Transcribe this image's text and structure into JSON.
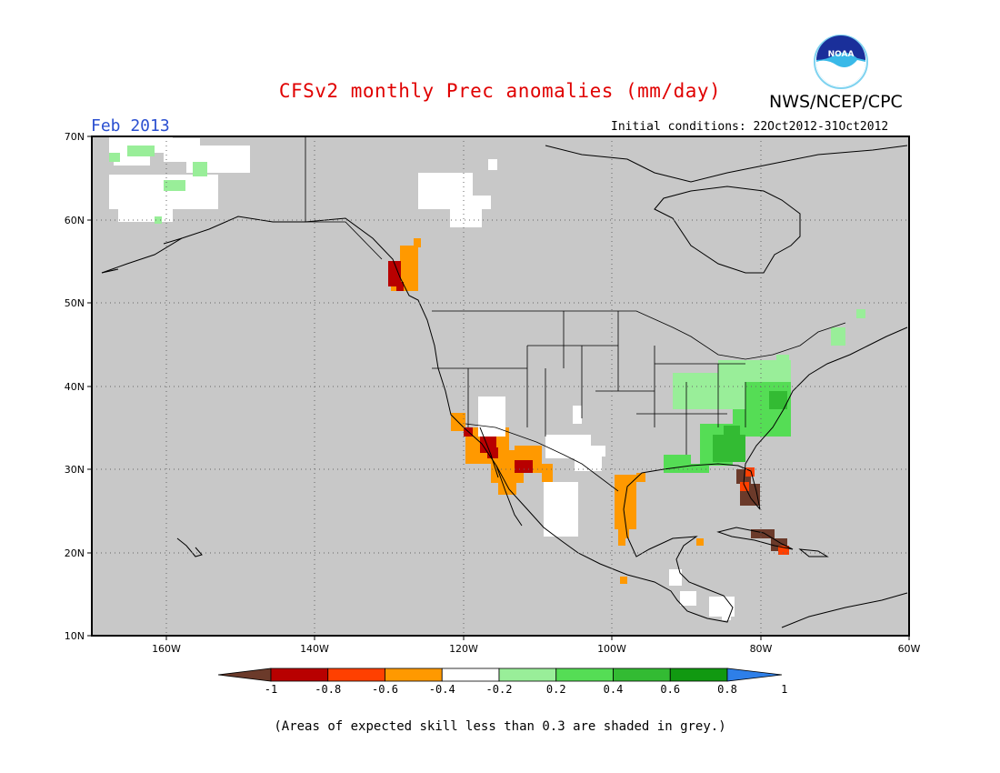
{
  "title": "CFSv2 monthly Prec anomalies (mm/day)",
  "agency": "NWS/NCEP/CPC",
  "logo_text": "NOAA",
  "month_label": "Feb 2013",
  "initial_conditions": "Initial conditions: 22Oct2012-31Oct2012",
  "footnote": "(Areas of expected skill less than 0.3 are shaded in grey.)",
  "map": {
    "lon_range": [
      -172,
      -60
    ],
    "lat_range": [
      10,
      70
    ],
    "background_color": "#c8c8c8",
    "grid": "dotted",
    "lat_ticks": [
      "70N",
      "60N",
      "50N",
      "40N",
      "30N",
      "20N",
      "10N"
    ],
    "lon_ticks": [
      "160W",
      "140W",
      "120W",
      "100W",
      "80W",
      "60W"
    ]
  },
  "colorbar": {
    "labels": [
      "-1",
      "-0.8",
      "-0.6",
      "-0.4",
      "-0.2",
      "0.2",
      "0.4",
      "0.6",
      "0.8",
      "1"
    ],
    "colors": [
      "#6b3a2a",
      "#b80000",
      "#ff4000",
      "#ff9900",
      "#ffffff",
      "#99ee99",
      "#55dd55",
      "#33bb33",
      "#119911",
      "#2e7fe8"
    ]
  },
  "anomaly_regions": [
    {
      "name": "alaska-north",
      "color": "#ffffff"
    },
    {
      "name": "alaska-north-green",
      "color": "#99ee99"
    },
    {
      "name": "yukon-white",
      "color": "#ffffff"
    },
    {
      "name": "bc-coast",
      "color": "#ff9900"
    },
    {
      "name": "bc-coast-dry",
      "color": "#b80000"
    },
    {
      "name": "california-baja",
      "color": "#ff9900"
    },
    {
      "name": "southern-california-dry",
      "color": "#b80000"
    },
    {
      "name": "southwest-white",
      "color": "#ffffff"
    },
    {
      "name": "texas-coast",
      "color": "#ff9900"
    },
    {
      "name": "ohio-valley",
      "color": "#99ee99"
    },
    {
      "name": "southeast",
      "color": "#55dd55"
    },
    {
      "name": "georgia-wet",
      "color": "#33bb33"
    },
    {
      "name": "florida-dry",
      "color": "#6b3a2a"
    },
    {
      "name": "cuba-dry",
      "color": "#6b3a2a"
    },
    {
      "name": "central-america-white",
      "color": "#ffffff"
    }
  ]
}
